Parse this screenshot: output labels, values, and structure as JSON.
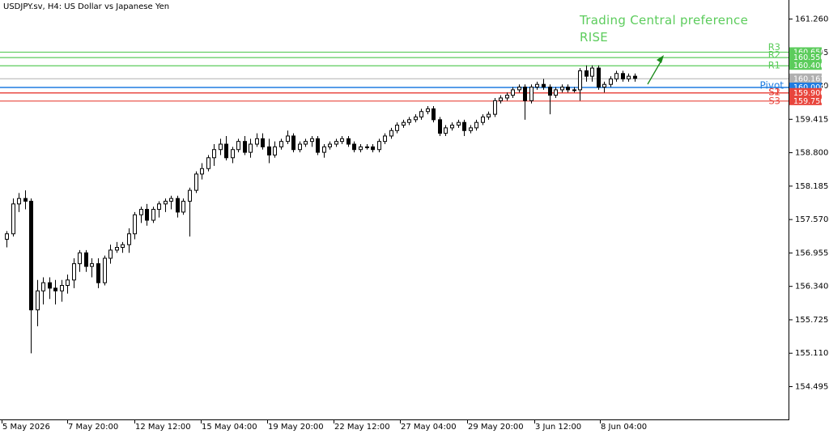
{
  "header": {
    "symbol_line": "USDJPY.sv, H4:  US Dollar vs Japanese Yen",
    "preference_title": "Trading Central preference",
    "preference_value": "RISE"
  },
  "colors": {
    "resistance": "#5ccc5c",
    "support": "#e8453c",
    "pivot": "#1e7be0",
    "current": "#b0b0b0",
    "candle": "#000000",
    "arrow": "#1a8a1a"
  },
  "chart_data": {
    "type": "candlestick",
    "symbol": "USDJPY.sv",
    "timeframe": "H4",
    "ylim": [
      154.2,
      161.6
    ],
    "y_ticks": [
      "161.260",
      "160.645",
      "160.030",
      "159.415",
      "158.800",
      "158.185",
      "157.570",
      "156.955",
      "156.340",
      "155.725",
      "155.110",
      "154.495"
    ],
    "x_ticks": [
      "5 May 2026",
      "7 May 20:00",
      "12 May 12:00",
      "15 May 04:00",
      "19 May 20:00",
      "22 May 12:00",
      "27 May 04:00",
      "29 May 20:00",
      "3 Jun 12:00",
      "8 Jun 04:00"
    ],
    "levels": [
      {
        "name": "R3",
        "value": 160.65,
        "label": "160.650",
        "kind": "resistance"
      },
      {
        "name": "R2",
        "value": 160.55,
        "label": "160.550",
        "kind": "resistance"
      },
      {
        "name": "R1",
        "value": 160.4,
        "label": "160.400",
        "kind": "resistance"
      },
      {
        "name": "Pivot",
        "value": 160.0,
        "label": "160.000",
        "kind": "pivot"
      },
      {
        "name": "S1",
        "value": 159.9,
        "label": "159.900",
        "kind": "support"
      },
      {
        "name": "S2",
        "value": 159.9,
        "label": "",
        "kind": "support"
      },
      {
        "name": "S3",
        "value": 159.75,
        "label": "159.750",
        "kind": "support"
      }
    ],
    "current_price": {
      "value": 160.161,
      "label": "160.161"
    },
    "candles": [
      [
        157.2,
        157.35,
        157.05,
        157.3
      ],
      [
        157.3,
        157.95,
        157.25,
        157.85
      ],
      [
        157.85,
        158.05,
        157.7,
        157.95
      ],
      [
        157.95,
        158.1,
        157.75,
        157.9
      ],
      [
        157.9,
        157.95,
        155.1,
        155.9
      ],
      [
        155.9,
        156.45,
        155.6,
        156.25
      ],
      [
        156.25,
        156.5,
        156.0,
        156.4
      ],
      [
        156.4,
        156.5,
        156.1,
        156.3
      ],
      [
        156.3,
        156.45,
        156.0,
        156.25
      ],
      [
        156.25,
        156.45,
        156.05,
        156.35
      ],
      [
        156.35,
        156.55,
        156.2,
        156.45
      ],
      [
        156.45,
        156.85,
        156.3,
        156.75
      ],
      [
        156.75,
        157.0,
        156.6,
        156.95
      ],
      [
        156.95,
        157.0,
        156.6,
        156.7
      ],
      [
        156.7,
        156.85,
        156.5,
        156.75
      ],
      [
        156.75,
        156.85,
        156.3,
        156.4
      ],
      [
        156.4,
        156.9,
        156.35,
        156.85
      ],
      [
        156.85,
        157.1,
        156.75,
        157.0
      ],
      [
        157.0,
        157.15,
        156.95,
        157.05
      ],
      [
        157.05,
        157.15,
        156.95,
        157.1
      ],
      [
        157.1,
        157.4,
        156.95,
        157.3
      ],
      [
        157.3,
        157.7,
        157.2,
        157.65
      ],
      [
        157.65,
        157.8,
        157.5,
        157.75
      ],
      [
        157.75,
        157.85,
        157.45,
        157.55
      ],
      [
        157.55,
        157.8,
        157.5,
        157.75
      ],
      [
        157.75,
        157.9,
        157.6,
        157.85
      ],
      [
        157.85,
        157.95,
        157.7,
        157.9
      ],
      [
        157.9,
        158.0,
        157.75,
        157.95
      ],
      [
        157.95,
        158.0,
        157.6,
        157.7
      ],
      [
        157.7,
        157.95,
        157.65,
        157.9
      ],
      [
        157.9,
        158.15,
        157.25,
        158.1
      ],
      [
        158.1,
        158.45,
        158.05,
        158.4
      ],
      [
        158.4,
        158.6,
        158.3,
        158.5
      ],
      [
        158.5,
        158.75,
        158.45,
        158.7
      ],
      [
        158.7,
        158.95,
        158.55,
        158.85
      ],
      [
        158.85,
        159.05,
        158.75,
        158.95
      ],
      [
        158.95,
        159.1,
        158.65,
        158.7
      ],
      [
        158.7,
        158.9,
        158.6,
        158.85
      ],
      [
        158.85,
        159.05,
        158.8,
        159.0
      ],
      [
        159.0,
        159.1,
        158.75,
        158.8
      ],
      [
        158.8,
        159.05,
        158.7,
        158.95
      ],
      [
        158.95,
        159.15,
        158.9,
        159.05
      ],
      [
        159.05,
        159.15,
        158.85,
        158.9
      ],
      [
        158.9,
        159.05,
        158.6,
        158.75
      ],
      [
        158.75,
        159.0,
        158.7,
        158.9
      ],
      [
        158.9,
        159.05,
        158.85,
        159.0
      ],
      [
        159.0,
        159.2,
        158.95,
        159.1
      ],
      [
        159.1,
        159.15,
        158.8,
        158.85
      ],
      [
        158.85,
        159.0,
        158.8,
        158.95
      ],
      [
        158.95,
        159.05,
        158.9,
        159.0
      ],
      [
        159.0,
        159.1,
        158.9,
        159.05
      ],
      [
        159.05,
        159.1,
        158.75,
        158.8
      ],
      [
        158.8,
        158.95,
        158.7,
        158.9
      ],
      [
        158.9,
        159.0,
        158.85,
        158.95
      ],
      [
        158.95,
        159.05,
        158.9,
        159.0
      ],
      [
        159.0,
        159.1,
        158.95,
        159.05
      ],
      [
        159.05,
        159.1,
        158.9,
        158.95
      ],
      [
        158.95,
        159.0,
        158.8,
        158.85
      ],
      [
        158.85,
        158.95,
        158.8,
        158.9
      ],
      [
        158.9,
        158.95,
        158.85,
        158.9
      ],
      [
        158.9,
        158.95,
        158.8,
        158.85
      ],
      [
        158.85,
        159.05,
        158.8,
        159.0
      ],
      [
        159.0,
        159.15,
        158.95,
        159.1
      ],
      [
        159.1,
        159.25,
        159.05,
        159.2
      ],
      [
        159.2,
        159.35,
        159.15,
        159.3
      ],
      [
        159.3,
        159.4,
        159.25,
        159.35
      ],
      [
        159.35,
        159.45,
        159.3,
        159.4
      ],
      [
        159.4,
        159.5,
        159.35,
        159.45
      ],
      [
        159.45,
        159.6,
        159.4,
        159.55
      ],
      [
        159.55,
        159.65,
        159.5,
        159.6
      ],
      [
        159.6,
        159.65,
        159.35,
        159.4
      ],
      [
        159.4,
        159.45,
        159.1,
        159.15
      ],
      [
        159.15,
        159.3,
        159.1,
        159.25
      ],
      [
        159.25,
        159.35,
        159.2,
        159.3
      ],
      [
        159.3,
        159.4,
        159.25,
        159.35
      ],
      [
        159.35,
        159.4,
        159.1,
        159.2
      ],
      [
        159.2,
        159.3,
        159.15,
        159.25
      ],
      [
        159.25,
        159.4,
        159.2,
        159.35
      ],
      [
        159.35,
        159.5,
        159.3,
        159.45
      ],
      [
        159.45,
        159.55,
        159.4,
        159.5
      ],
      [
        159.5,
        159.8,
        159.45,
        159.75
      ],
      [
        159.75,
        159.85,
        159.7,
        159.8
      ],
      [
        159.8,
        159.9,
        159.75,
        159.85
      ],
      [
        159.85,
        160.0,
        159.8,
        159.95
      ],
      [
        159.95,
        160.05,
        159.9,
        160.0
      ],
      [
        160.0,
        160.05,
        159.4,
        159.75
      ],
      [
        159.75,
        160.05,
        159.7,
        160.0
      ],
      [
        160.0,
        160.1,
        159.95,
        160.05
      ],
      [
        160.05,
        160.15,
        159.95,
        160.0
      ],
      [
        160.0,
        160.05,
        159.5,
        159.85
      ],
      [
        159.85,
        160.0,
        159.8,
        159.95
      ],
      [
        159.95,
        160.05,
        159.9,
        160.0
      ],
      [
        160.0,
        160.05,
        159.9,
        159.95
      ],
      [
        159.95,
        160.0,
        159.9,
        159.95
      ],
      [
        159.95,
        160.35,
        159.75,
        160.3
      ],
      [
        160.3,
        160.4,
        160.1,
        160.2
      ],
      [
        160.2,
        160.4,
        160.1,
        160.35
      ],
      [
        160.35,
        160.4,
        159.95,
        160.0
      ],
      [
        160.0,
        160.1,
        159.9,
        160.05
      ],
      [
        160.05,
        160.2,
        160.0,
        160.15
      ],
      [
        160.15,
        160.3,
        160.1,
        160.25
      ],
      [
        160.25,
        160.3,
        160.1,
        160.15
      ],
      [
        160.15,
        160.25,
        160.1,
        160.2
      ],
      [
        160.2,
        160.25,
        160.1,
        160.16
      ]
    ]
  }
}
